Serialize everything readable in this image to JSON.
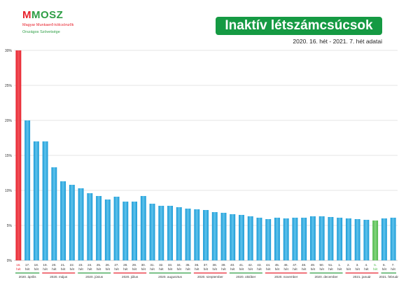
{
  "logo": {
    "name_first": "M",
    "name_rest": "MOSZ",
    "line1": "Magyar Munkaerő-kölcsönzők",
    "line2": "Országos Szövetsége"
  },
  "header": {
    "title": "Inaktív létszámcsúcsok",
    "subtitle": "2020. 16. hét - 2021. 7. hét adatai"
  },
  "colors": {
    "bar": "#1a9ad6",
    "highlight_max": "#e8222d",
    "highlight_min": "#4db848",
    "grid": "#cccccc",
    "month_green": "#2e9e45",
    "month_red": "#e8222d"
  },
  "chart_data": {
    "type": "bar",
    "title": "Inaktív létszámcsúcsok",
    "subtitle": "2020. 16. hét - 2021. 7. hét adatai",
    "y_unit": "%",
    "ylim": [
      0,
      30
    ],
    "yticks": [
      "0%",
      "5%",
      "10%",
      "15%",
      "20%",
      "25%",
      "30%"
    ],
    "grid": true,
    "categories": [
      "16.",
      "17.",
      "18.",
      "19.",
      "20.",
      "21.",
      "22.",
      "23.",
      "24.",
      "25.",
      "26.",
      "27.",
      "28.",
      "29.",
      "30.",
      "31.",
      "32.",
      "33.",
      "34.",
      "35.",
      "36.",
      "37.",
      "38.",
      "39.",
      "40.",
      "41.",
      "42.",
      "43.",
      "44.",
      "45.",
      "46.",
      "47.",
      "48.",
      "49.",
      "50.",
      "51.",
      "1.",
      "2.",
      "3.",
      "4.",
      "5.",
      "6.",
      "7."
    ],
    "category_sublabel": "hét",
    "values": [
      30.0,
      20.0,
      17.0,
      17.0,
      13.3,
      11.3,
      10.8,
      10.3,
      9.6,
      9.2,
      8.7,
      9.1,
      8.4,
      8.4,
      9.2,
      8.1,
      7.8,
      7.8,
      7.6,
      7.4,
      7.3,
      7.2,
      6.9,
      6.8,
      6.6,
      6.5,
      6.3,
      6.1,
      5.9,
      6.1,
      6.0,
      6.1,
      6.1,
      6.3,
      6.3,
      6.2,
      6.1,
      6.0,
      5.9,
      5.8,
      5.7,
      6.0,
      6.1
    ],
    "highlight_max_index": 0,
    "highlight_min_index": 40,
    "month_groups": [
      {
        "label": "2020. április",
        "start": 0,
        "end": 2
      },
      {
        "label": "2020. május",
        "start": 3,
        "end": 6
      },
      {
        "label": "2020. június",
        "start": 7,
        "end": 10
      },
      {
        "label": "2020. július",
        "start": 11,
        "end": 14
      },
      {
        "label": "2020. augusztus",
        "start": 15,
        "end": 19
      },
      {
        "label": "2020. szeptember",
        "start": 20,
        "end": 23
      },
      {
        "label": "2020. október",
        "start": 24,
        "end": 27
      },
      {
        "label": "2020. november",
        "start": 28,
        "end": 32
      },
      {
        "label": "2020. december",
        "start": 33,
        "end": 36
      },
      {
        "label": "2021. január",
        "start": 37,
        "end": 40
      },
      {
        "label": "2021. február",
        "start": 41,
        "end": 42
      }
    ]
  }
}
